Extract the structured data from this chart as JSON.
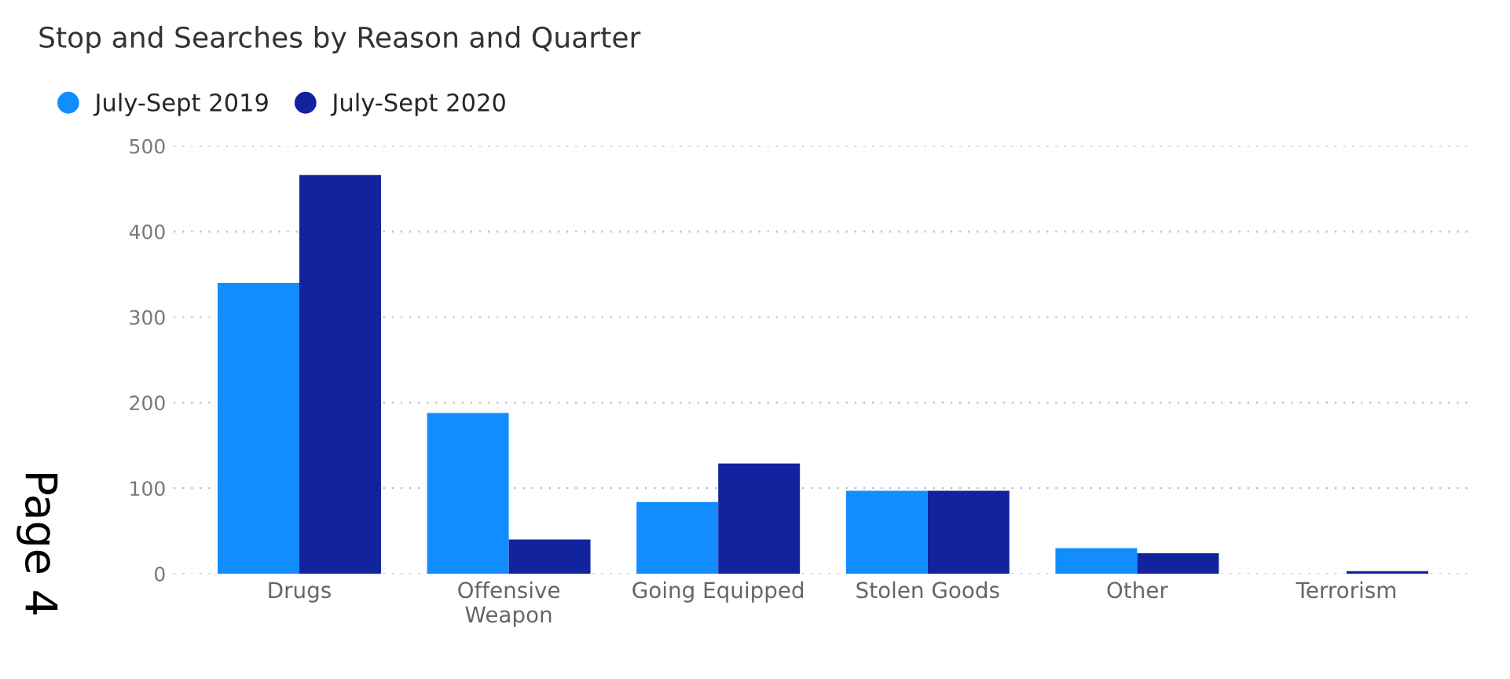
{
  "chart_data": {
    "type": "bar",
    "title": "Stop and Searches by Reason and Quarter",
    "categories": [
      "Drugs",
      "Offensive\nWeapon",
      "Going Equipped",
      "Stolen Goods",
      "Other",
      "Terrorism"
    ],
    "series": [
      {
        "name": "July-Sept 2019",
        "color": "#118dff",
        "values": [
          340,
          188,
          84,
          97,
          30,
          null
        ]
      },
      {
        "name": "July-Sept 2020",
        "color": "#12239e",
        "values": [
          466,
          40,
          129,
          97,
          24,
          3
        ]
      }
    ],
    "ylim": [
      0,
      500
    ],
    "yticks": [
      0,
      100,
      200,
      300,
      400,
      500
    ],
    "grid": "y",
    "legend": "top left",
    "annotations": [
      "Page 4"
    ]
  }
}
